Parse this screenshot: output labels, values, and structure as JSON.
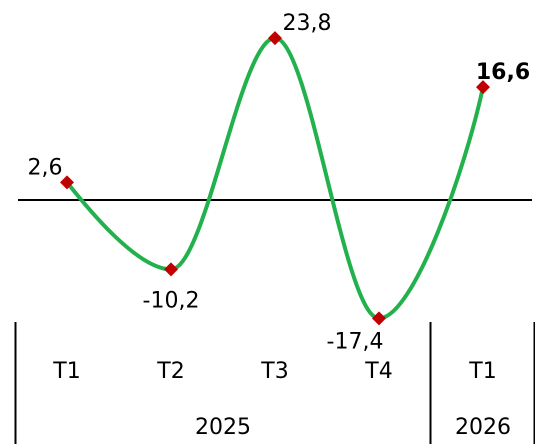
{
  "chart_data": {
    "type": "line",
    "title": "",
    "xlabel": "",
    "ylabel": "",
    "categories": [
      "T1",
      "T2",
      "T3",
      "T4",
      "T1"
    ],
    "years": [
      {
        "label": "2025",
        "span": 4
      },
      {
        "label": "2026",
        "span": 1
      }
    ],
    "series": [
      {
        "values": [
          2.6,
          -10.2,
          23.8,
          -17.4,
          16.6
        ],
        "labels": [
          "2,6",
          "-10,2",
          "23,8",
          "-17,4",
          "16,6"
        ],
        "emphasized_index": 4
      }
    ],
    "ylim": [
      -20,
      26
    ],
    "smooth": true,
    "grid": false,
    "legend": "none",
    "colors": {
      "line": "#22b14c",
      "marker": "#c00000",
      "axis": "#000000"
    }
  }
}
